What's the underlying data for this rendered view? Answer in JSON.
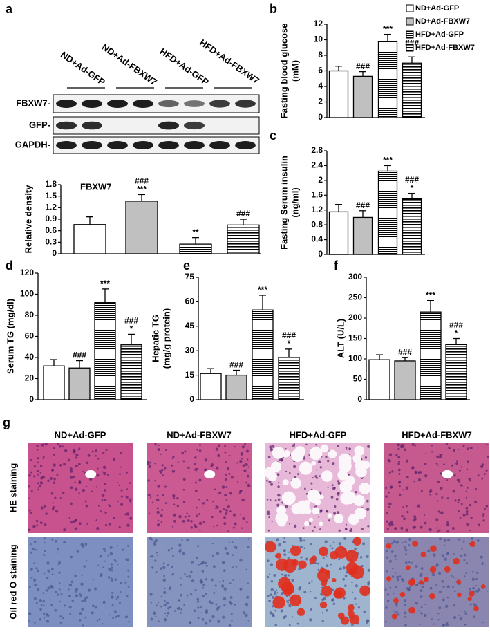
{
  "groups": [
    {
      "name": "ND+Ad-GFP",
      "fill": "#ffffff"
    },
    {
      "name": "ND+Ad-FBXW7",
      "fill": "#c0c0c0"
    },
    {
      "name": "HFD+Ad-GFP",
      "fill": "hstripe-fine"
    },
    {
      "name": "HFD+Ad-FBXW7",
      "fill": "hstripe"
    }
  ],
  "blot": {
    "label": "a",
    "lanes": [
      "ND+Ad-GFP",
      "ND+Ad-FBXW7",
      "HFD+Ad-GFP",
      "HFD+Ad-FBXW7"
    ],
    "rows": [
      "FBXW7-",
      "GFP-",
      "GAPDH-"
    ]
  },
  "chart_data": [
    {
      "type": "bar",
      "title": "FBXW7",
      "ylabel": [
        "Relative density"
      ],
      "ylim": [
        0,
        1.8
      ],
      "yticks": [
        0,
        0.3,
        0.6,
        0.9,
        1.2,
        1.5,
        1.8
      ],
      "values": [
        0.76,
        1.37,
        0.25,
        0.75
      ],
      "errors": [
        0.2,
        0.17,
        0.17,
        0.15
      ],
      "annotations": [
        [],
        [
          "###",
          "***"
        ],
        [
          "**"
        ],
        [
          "###"
        ]
      ]
    },
    {
      "type": "bar",
      "label": "b",
      "ylabel": [
        "Fasting blood glucose",
        "(mM)"
      ],
      "ylim": [
        0,
        12
      ],
      "yticks": [
        0,
        2,
        4,
        6,
        8,
        10,
        12
      ],
      "values": [
        6.0,
        5.3,
        9.8,
        7.0
      ],
      "errors": [
        0.6,
        0.6,
        0.9,
        0.8
      ],
      "annotations": [
        [],
        [
          "###"
        ],
        [
          "***"
        ],
        [
          "###",
          "*"
        ]
      ],
      "legend": "top-right"
    },
    {
      "type": "bar",
      "label": "c",
      "ylabel": [
        "Fasting Serum insulin",
        "(ng/ml)"
      ],
      "ylim": [
        0,
        2.8
      ],
      "yticks": [
        0,
        0.4,
        0.8,
        1.2,
        1.6,
        2,
        2.4,
        2.8
      ],
      "values": [
        1.15,
        1.0,
        2.25,
        1.5
      ],
      "errors": [
        0.2,
        0.18,
        0.15,
        0.15
      ],
      "annotations": [
        [],
        [
          "###"
        ],
        [
          "***"
        ],
        [
          "###",
          "*"
        ]
      ]
    },
    {
      "type": "bar",
      "label": "d",
      "ylabel": [
        "Serum TG (mg/dl)"
      ],
      "ylim": [
        0,
        120
      ],
      "yticks": [
        0,
        20,
        40,
        60,
        80,
        100,
        120
      ],
      "values": [
        32,
        30,
        92,
        52
      ],
      "errors": [
        6,
        7,
        13,
        10
      ],
      "annotations": [
        [],
        [
          "###"
        ],
        [
          "***"
        ],
        [
          "###",
          "*"
        ]
      ]
    },
    {
      "type": "bar",
      "label": "e",
      "ylabel": [
        "Hepatic TG",
        "(mg/g protein)"
      ],
      "ylim": [
        0,
        75
      ],
      "yticks": [
        0,
        15,
        30,
        45,
        60,
        75
      ],
      "values": [
        16,
        15,
        55,
        26
      ],
      "errors": [
        3,
        3,
        9,
        5
      ],
      "annotations": [
        [],
        [
          "###"
        ],
        [
          "***"
        ],
        [
          "###",
          "*"
        ]
      ]
    },
    {
      "type": "bar",
      "label": "f",
      "ylabel": [
        "ALT (U/L)"
      ],
      "ylim": [
        0,
        300
      ],
      "yticks": [
        0,
        50,
        100,
        150,
        200,
        250,
        300
      ],
      "values": [
        98,
        95,
        215,
        135
      ],
      "errors": [
        12,
        8,
        28,
        15
      ],
      "annotations": [
        [],
        [
          "###"
        ],
        [
          "***"
        ],
        [
          "###",
          "*"
        ]
      ]
    }
  ],
  "histology": {
    "label": "g",
    "columns": [
      "ND+Ad-GFP",
      "ND+Ad-FBXW7",
      "HFD+Ad-GFP",
      "HFD+Ad-FBXW7"
    ],
    "rows": [
      "HE staining",
      "Oil red O staining"
    ]
  }
}
